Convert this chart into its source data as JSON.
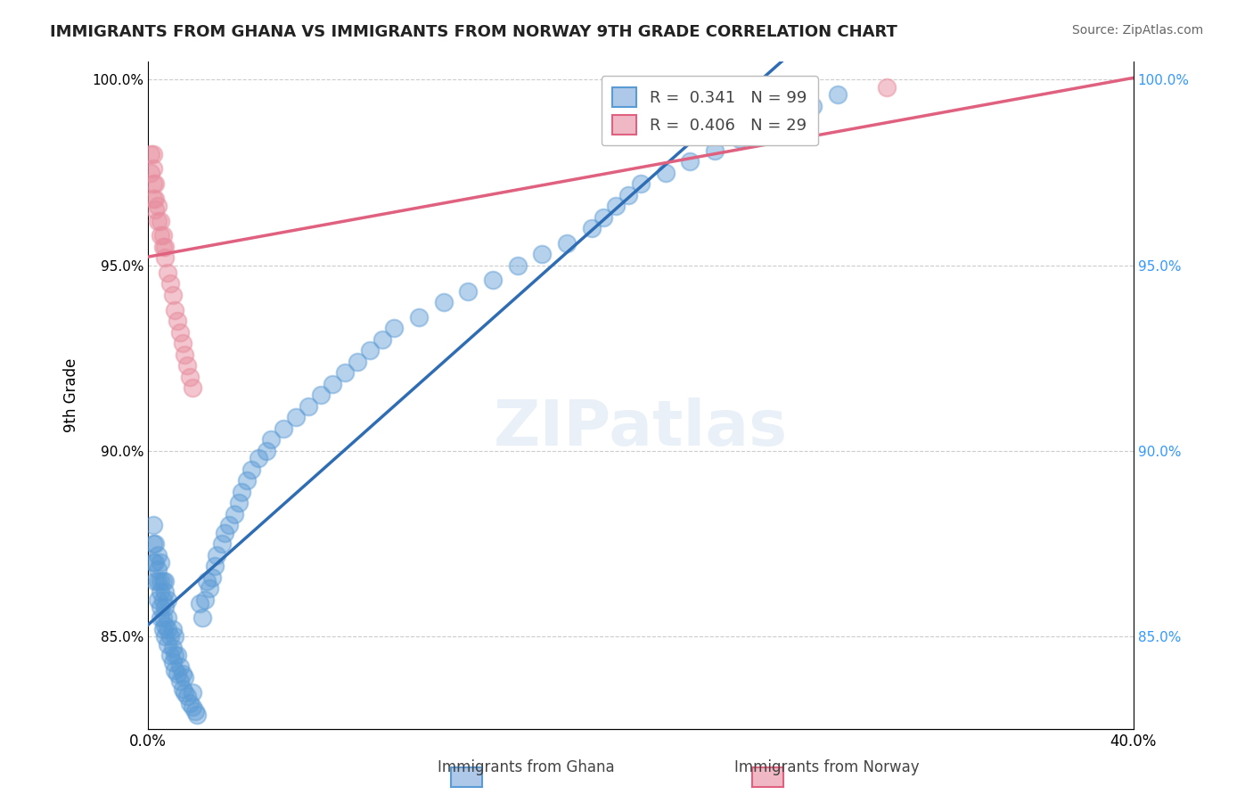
{
  "title": "IMMIGRANTS FROM GHANA VS IMMIGRANTS FROM NORWAY 9TH GRADE CORRELATION CHART",
  "source": "Source: ZipAtlas.com",
  "xlabel_bottom": "Immigrants from Ghana",
  "xlabel_right": "Immigrants from Norway",
  "ylabel": "9th Grade",
  "xlim": [
    0.0,
    0.4
  ],
  "ylim": [
    0.825,
    1.005
  ],
  "xticks": [
    0.0,
    0.05,
    0.1,
    0.15,
    0.2,
    0.25,
    0.3,
    0.35,
    0.4
  ],
  "xticklabels": [
    "0.0%",
    "",
    "",
    "",
    "",
    "",
    "",
    "",
    "40.0%"
  ],
  "yticks": [
    0.85,
    0.9,
    0.95,
    1.0
  ],
  "yticklabels": [
    "85.0%",
    "90.0%",
    "95.0%",
    "100.0%"
  ],
  "ghana_color": "#5b9bd5",
  "norway_color": "#e88fa0",
  "ghana_R": 0.341,
  "ghana_N": 99,
  "norway_R": 0.406,
  "norway_N": 29,
  "legend_R_ghana": "R =  0.341",
  "legend_N_ghana": "N = 99",
  "legend_R_norway": "R =  0.406",
  "legend_N_norway": "N = 29",
  "ghana_x": [
    0.002,
    0.002,
    0.002,
    0.003,
    0.003,
    0.003,
    0.004,
    0.004,
    0.004,
    0.004,
    0.005,
    0.005,
    0.005,
    0.005,
    0.005,
    0.006,
    0.006,
    0.006,
    0.006,
    0.007,
    0.007,
    0.007,
    0.007,
    0.007,
    0.008,
    0.008,
    0.008,
    0.008,
    0.009,
    0.009,
    0.01,
    0.01,
    0.01,
    0.011,
    0.011,
    0.011,
    0.012,
    0.012,
    0.013,
    0.013,
    0.014,
    0.014,
    0.015,
    0.015,
    0.016,
    0.017,
    0.018,
    0.018,
    0.019,
    0.02,
    0.021,
    0.022,
    0.023,
    0.024,
    0.025,
    0.026,
    0.027,
    0.028,
    0.03,
    0.031,
    0.033,
    0.035,
    0.037,
    0.038,
    0.04,
    0.042,
    0.045,
    0.048,
    0.05,
    0.055,
    0.06,
    0.065,
    0.07,
    0.075,
    0.08,
    0.085,
    0.09,
    0.095,
    0.1,
    0.11,
    0.12,
    0.13,
    0.14,
    0.15,
    0.16,
    0.17,
    0.18,
    0.185,
    0.19,
    0.195,
    0.2,
    0.21,
    0.22,
    0.23,
    0.24,
    0.25,
    0.26,
    0.27,
    0.28
  ],
  "ghana_y": [
    0.87,
    0.875,
    0.88,
    0.865,
    0.87,
    0.875,
    0.86,
    0.865,
    0.868,
    0.872,
    0.855,
    0.858,
    0.862,
    0.865,
    0.87,
    0.852,
    0.855,
    0.86,
    0.865,
    0.85,
    0.853,
    0.858,
    0.862,
    0.865,
    0.848,
    0.852,
    0.855,
    0.86,
    0.845,
    0.85,
    0.843,
    0.847,
    0.852,
    0.841,
    0.845,
    0.85,
    0.84,
    0.845,
    0.838,
    0.842,
    0.836,
    0.84,
    0.835,
    0.839,
    0.834,
    0.832,
    0.831,
    0.835,
    0.83,
    0.829,
    0.859,
    0.855,
    0.86,
    0.865,
    0.863,
    0.866,
    0.869,
    0.872,
    0.875,
    0.878,
    0.88,
    0.883,
    0.886,
    0.889,
    0.892,
    0.895,
    0.898,
    0.9,
    0.903,
    0.906,
    0.909,
    0.912,
    0.915,
    0.918,
    0.921,
    0.924,
    0.927,
    0.93,
    0.933,
    0.936,
    0.94,
    0.943,
    0.946,
    0.95,
    0.953,
    0.956,
    0.96,
    0.963,
    0.966,
    0.969,
    0.972,
    0.975,
    0.978,
    0.981,
    0.984,
    0.987,
    0.99,
    0.993,
    0.996
  ],
  "norway_x": [
    0.001,
    0.001,
    0.002,
    0.002,
    0.002,
    0.002,
    0.003,
    0.003,
    0.003,
    0.004,
    0.004,
    0.005,
    0.005,
    0.006,
    0.006,
    0.007,
    0.007,
    0.008,
    0.009,
    0.01,
    0.011,
    0.012,
    0.013,
    0.014,
    0.015,
    0.016,
    0.017,
    0.018,
    0.3
  ],
  "norway_y": [
    0.975,
    0.98,
    0.968,
    0.972,
    0.976,
    0.98,
    0.965,
    0.968,
    0.972,
    0.962,
    0.966,
    0.958,
    0.962,
    0.955,
    0.958,
    0.952,
    0.955,
    0.948,
    0.945,
    0.942,
    0.938,
    0.935,
    0.932,
    0.929,
    0.926,
    0.923,
    0.92,
    0.917,
    0.998
  ]
}
